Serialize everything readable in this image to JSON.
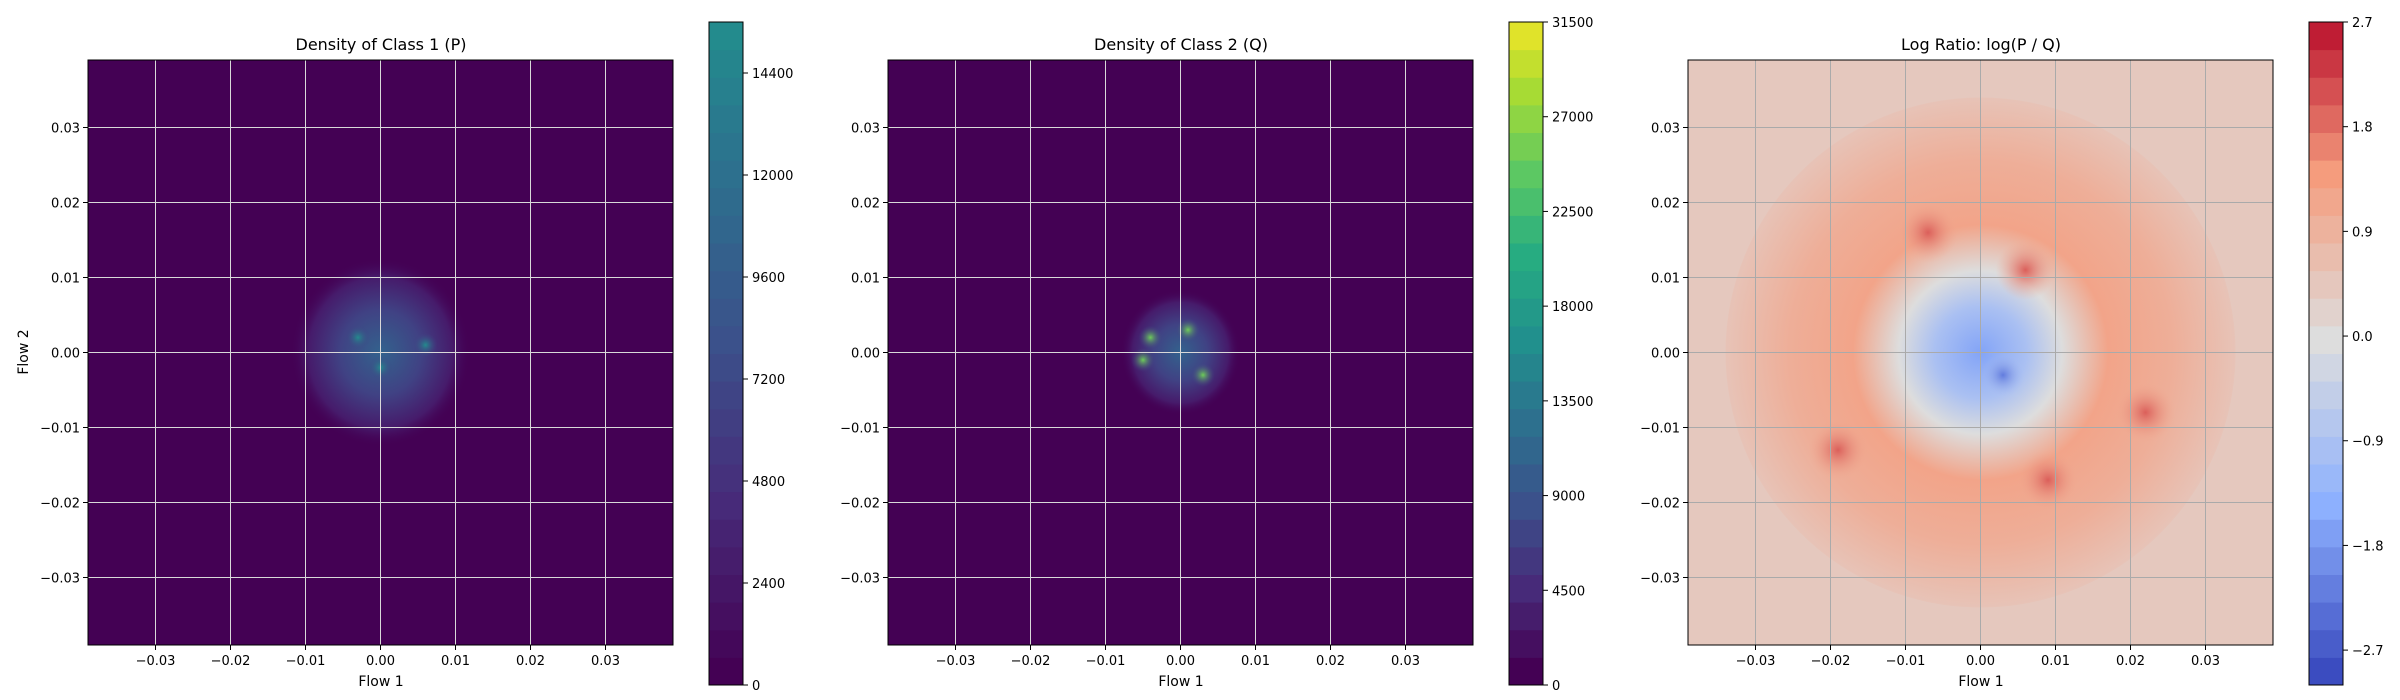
{
  "chart_data": [
    {
      "type": "heatmap",
      "title": "Density of Class 1 (P)",
      "xlabel": "Flow 1",
      "ylabel": "Flow 2",
      "xlim": [
        -0.039,
        0.039
      ],
      "ylim": [
        -0.039,
        0.039
      ],
      "xticks": [
        "−0.03",
        "−0.02",
        "−0.01",
        "0.00",
        "0.01",
        "0.02",
        "0.03"
      ],
      "yticks": [
        "0.03",
        "0.02",
        "0.01",
        "0.00",
        "−0.01",
        "−0.02",
        "−0.03"
      ],
      "grid": true,
      "colormap": "viridis",
      "colorbar": {
        "ticks": [
          "14400",
          "12000",
          "9600",
          "7200",
          "4800",
          "2400",
          "0"
        ],
        "tick_values": [
          14400,
          12000,
          9600,
          7200,
          4800,
          2400,
          0
        ],
        "range": [
          0,
          15600
        ]
      },
      "blob": {
        "center": [
          0.0,
          0.0
        ],
        "spread": 0.012,
        "peaks": [
          [
            0.006,
            0.001
          ],
          [
            -0.003,
            0.002
          ],
          [
            0.0,
            -0.002
          ]
        ]
      }
    },
    {
      "type": "heatmap",
      "title": "Density of Class 2 (Q)",
      "xlabel": "Flow 1",
      "ylabel": "",
      "xlim": [
        -0.039,
        0.039
      ],
      "ylim": [
        -0.039,
        0.039
      ],
      "xticks": [
        "−0.03",
        "−0.02",
        "−0.01",
        "0.00",
        "0.01",
        "0.02",
        "0.03"
      ],
      "yticks": [
        "0.03",
        "0.02",
        "0.01",
        "0.00",
        "−0.01",
        "−0.02",
        "−0.03"
      ],
      "grid": true,
      "colormap": "viridis",
      "colorbar": {
        "ticks": [
          "31500",
          "27000",
          "22500",
          "18000",
          "13500",
          "9000",
          "4500",
          "0"
        ],
        "tick_values": [
          31500,
          27000,
          22500,
          18000,
          13500,
          9000,
          4500,
          0
        ],
        "range": [
          0,
          31500
        ]
      },
      "blob": {
        "center": [
          0.0,
          0.0
        ],
        "spread": 0.008,
        "peaks": [
          [
            -0.004,
            0.002
          ],
          [
            0.003,
            -0.003
          ],
          [
            0.001,
            0.003
          ],
          [
            -0.005,
            -0.001
          ]
        ]
      }
    },
    {
      "type": "heatmap",
      "title": "Log Ratio: log(P / Q)",
      "xlabel": "Flow 1",
      "ylabel": "",
      "xlim": [
        -0.039,
        0.039
      ],
      "ylim": [
        -0.039,
        0.039
      ],
      "xticks": [
        "−0.03",
        "−0.02",
        "−0.01",
        "0.00",
        "0.01",
        "0.02",
        "0.03"
      ],
      "yticks": [
        "0.03",
        "0.02",
        "0.01",
        "0.00",
        "−0.01",
        "−0.02",
        "−0.03"
      ],
      "grid": true,
      "colormap": "coolwarm",
      "colorbar": {
        "ticks": [
          "2.7",
          "1.8",
          "0.9",
          "0.0",
          "−0.9",
          "−1.8",
          "−2.7"
        ],
        "tick_values": [
          2.7,
          1.8,
          0.9,
          0.0,
          -0.9,
          -1.8,
          -2.7
        ],
        "range": [
          -3.0,
          2.7
        ]
      }
    }
  ]
}
